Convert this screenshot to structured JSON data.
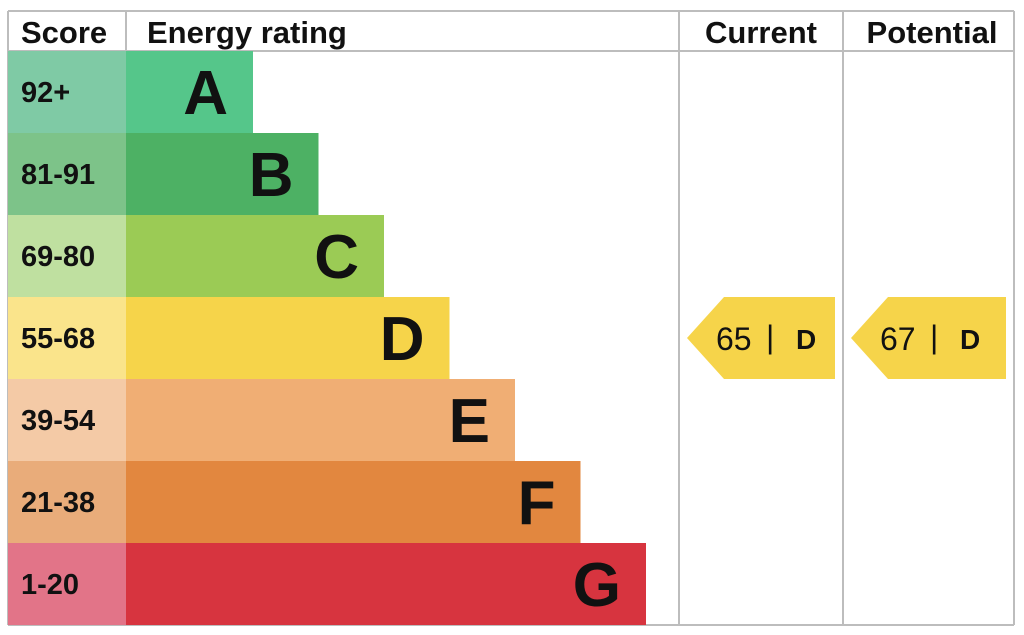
{
  "headers": {
    "score": "Score",
    "rating": "Energy rating",
    "current": "Current",
    "potential": "Potential"
  },
  "chart_data": {
    "type": "bar",
    "categories": [
      "A",
      "B",
      "C",
      "D",
      "E",
      "F",
      "G"
    ],
    "score_ranges": [
      "92+",
      "81-91",
      "69-80",
      "55-68",
      "39-54",
      "21-38",
      "1-20"
    ],
    "band_colors": [
      "#55c68a",
      "#4db164",
      "#9bcb55",
      "#f6d44a",
      "#f0ae74",
      "#e2873f",
      "#d7343f"
    ],
    "score_cell_colors": [
      "#7fcaa5",
      "#7dc389",
      "#bfe0a0",
      "#fae48b",
      "#f4caa6",
      "#e9ac7a",
      "#e27488"
    ],
    "current": {
      "value": 65,
      "separator": "|",
      "band": "D"
    },
    "potential": {
      "value": 67,
      "separator": "|",
      "band": "D"
    }
  }
}
